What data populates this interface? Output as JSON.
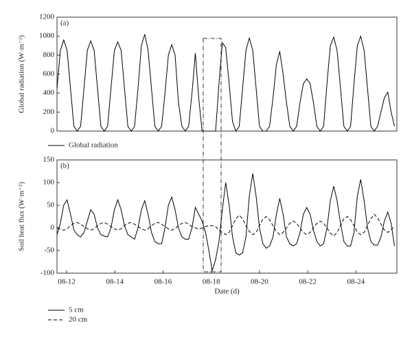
{
  "chart_data": [
    {
      "type": "line",
      "panel_label": "(a)",
      "ylabel": "Global radiation (W·m⁻²)",
      "x": [
        11.6,
        11.74,
        11.88,
        12.02,
        12.16,
        12.3,
        12.44,
        12.58,
        12.72,
        12.86,
        13,
        13.14,
        13.28,
        13.42,
        13.56,
        13.7,
        13.84,
        13.98,
        14.12,
        14.26,
        14.4,
        14.54,
        14.68,
        14.82,
        14.96,
        15.1,
        15.24,
        15.38,
        15.52,
        15.66,
        15.8,
        15.94,
        16.08,
        16.22,
        16.36,
        16.5,
        16.64,
        16.78,
        16.92,
        17.06,
        17.2,
        17.34,
        17.48,
        17.62,
        17.76,
        17.9,
        18.04,
        18.18,
        18.32,
        18.46,
        18.6,
        18.74,
        18.88,
        19.02,
        19.16,
        19.3,
        19.44,
        19.58,
        19.72,
        19.86,
        20,
        20.14,
        20.28,
        20.42,
        20.56,
        20.7,
        20.84,
        20.98,
        21.12,
        21.26,
        21.4,
        21.54,
        21.68,
        21.82,
        21.96,
        22.1,
        22.24,
        22.38,
        22.52,
        22.66,
        22.8,
        22.94,
        23.08,
        23.22,
        23.36,
        23.5,
        23.64,
        23.78,
        23.92,
        24.06,
        24.2,
        24.34,
        24.48,
        24.62,
        24.76,
        24.9,
        25.04,
        25.18,
        25.32,
        25.46,
        25.6
      ],
      "series": [
        {
          "name": "Global radiation",
          "color": "#000000",
          "dash": "solid",
          "values": [
            450,
            850,
            960,
            850,
            450,
            50,
            0,
            50,
            450,
            850,
            950,
            850,
            450,
            50,
            0,
            50,
            450,
            850,
            940,
            850,
            450,
            50,
            0,
            50,
            450,
            900,
            1020,
            850,
            450,
            50,
            0,
            50,
            400,
            800,
            910,
            800,
            300,
            50,
            0,
            50,
            400,
            820,
            350,
            0,
            0,
            0,
            0,
            0,
            500,
            930,
            880,
            500,
            100,
            0,
            50,
            450,
            850,
            980,
            850,
            450,
            50,
            0,
            0,
            50,
            350,
            700,
            840,
            600,
            300,
            50,
            0,
            50,
            300,
            500,
            550,
            500,
            300,
            50,
            0,
            50,
            500,
            900,
            990,
            850,
            450,
            50,
            0,
            50,
            500,
            900,
            1000,
            850,
            450,
            50,
            0,
            50,
            200,
            350,
            410,
            200,
            50
          ]
        }
      ],
      "xlim": [
        11.6,
        25.7
      ],
      "ylim": [
        0,
        1200
      ],
      "yticks": [
        0,
        200,
        400,
        600,
        800,
        1000,
        1200
      ]
    },
    {
      "type": "line",
      "panel_label": "(b)",
      "ylabel": "Soil heat flux (W·m⁻²)",
      "xlabel": "Date (d)",
      "x": [
        11.6,
        11.74,
        11.88,
        12.02,
        12.16,
        12.3,
        12.44,
        12.58,
        12.72,
        12.86,
        13,
        13.14,
        13.28,
        13.42,
        13.56,
        13.7,
        13.84,
        13.98,
        14.12,
        14.26,
        14.4,
        14.54,
        14.68,
        14.82,
        14.96,
        15.1,
        15.24,
        15.38,
        15.52,
        15.66,
        15.8,
        15.94,
        16.08,
        16.22,
        16.36,
        16.5,
        16.64,
        16.78,
        16.92,
        17.06,
        17.2,
        17.34,
        17.48,
        17.62,
        17.76,
        17.9,
        18.04,
        18.18,
        18.32,
        18.46,
        18.6,
        18.74,
        18.88,
        19.02,
        19.16,
        19.3,
        19.44,
        19.58,
        19.72,
        19.86,
        20,
        20.14,
        20.28,
        20.42,
        20.56,
        20.7,
        20.84,
        20.98,
        21.12,
        21.26,
        21.4,
        21.54,
        21.68,
        21.82,
        21.96,
        22.1,
        22.24,
        22.38,
        22.52,
        22.66,
        22.8,
        22.94,
        23.08,
        23.22,
        23.36,
        23.5,
        23.64,
        23.78,
        23.92,
        24.06,
        24.2,
        24.34,
        24.48,
        24.62,
        24.76,
        24.9,
        25.04,
        25.18,
        25.32,
        25.46,
        25.6
      ],
      "series": [
        {
          "name": "5 cm",
          "color": "#000000",
          "dash": "solid",
          "values": [
            -15,
            10,
            50,
            62,
            30,
            -5,
            -15,
            -20,
            -10,
            15,
            40,
            30,
            0,
            -15,
            -18,
            -20,
            0,
            40,
            62,
            40,
            5,
            -15,
            -20,
            -25,
            0,
            40,
            60,
            30,
            -10,
            -30,
            -35,
            -35,
            0,
            50,
            68,
            40,
            0,
            -20,
            -25,
            -25,
            0,
            45,
            30,
            15,
            -10,
            -50,
            -95,
            -70,
            -30,
            40,
            100,
            50,
            -20,
            -55,
            -60,
            -55,
            -20,
            70,
            120,
            70,
            0,
            -35,
            -45,
            -40,
            -20,
            30,
            65,
            30,
            -20,
            -35,
            -40,
            -35,
            -10,
            30,
            45,
            30,
            -5,
            -30,
            -40,
            -35,
            0,
            60,
            92,
            60,
            10,
            -30,
            -40,
            -40,
            -10,
            70,
            107,
            60,
            0,
            -30,
            -38,
            -38,
            -20,
            15,
            35,
            10,
            -40
          ]
        },
        {
          "name": "20 cm",
          "color": "#000000",
          "dash": "dashed",
          "values": [
            0,
            -3,
            -5,
            -2,
            5,
            10,
            12,
            8,
            3,
            -2,
            -5,
            -2,
            5,
            10,
            12,
            8,
            3,
            -2,
            -5,
            -2,
            5,
            10,
            12,
            8,
            3,
            -2,
            -5,
            -2,
            5,
            10,
            12,
            8,
            3,
            -2,
            -5,
            -2,
            5,
            10,
            12,
            8,
            3,
            0,
            -3,
            0,
            3,
            5,
            5,
            3,
            -5,
            -10,
            -15,
            -10,
            5,
            20,
            28,
            20,
            5,
            -8,
            -15,
            -10,
            5,
            20,
            25,
            18,
            5,
            -8,
            -15,
            -10,
            0,
            10,
            15,
            10,
            0,
            -10,
            -15,
            -10,
            0,
            10,
            15,
            10,
            0,
            -12,
            -18,
            -10,
            5,
            20,
            25,
            18,
            5,
            -10,
            -15,
            -10,
            5,
            20,
            30,
            22,
            8,
            -5,
            -10,
            -5,
            5
          ]
        }
      ],
      "xlim": [
        11.6,
        25.7
      ],
      "ylim": [
        -100,
        150
      ],
      "yticks": [
        -100,
        -50,
        0,
        50,
        100,
        150
      ],
      "xticks": [
        {
          "value": 12,
          "label": "08-12"
        },
        {
          "value": 14,
          "label": "08-14"
        },
        {
          "value": 16,
          "label": "08-16"
        },
        {
          "value": 18,
          "label": "08-18"
        },
        {
          "value": 20,
          "label": "08-20"
        },
        {
          "value": 22,
          "label": "08-22"
        },
        {
          "value": 24,
          "label": "08-24"
        }
      ]
    }
  ]
}
